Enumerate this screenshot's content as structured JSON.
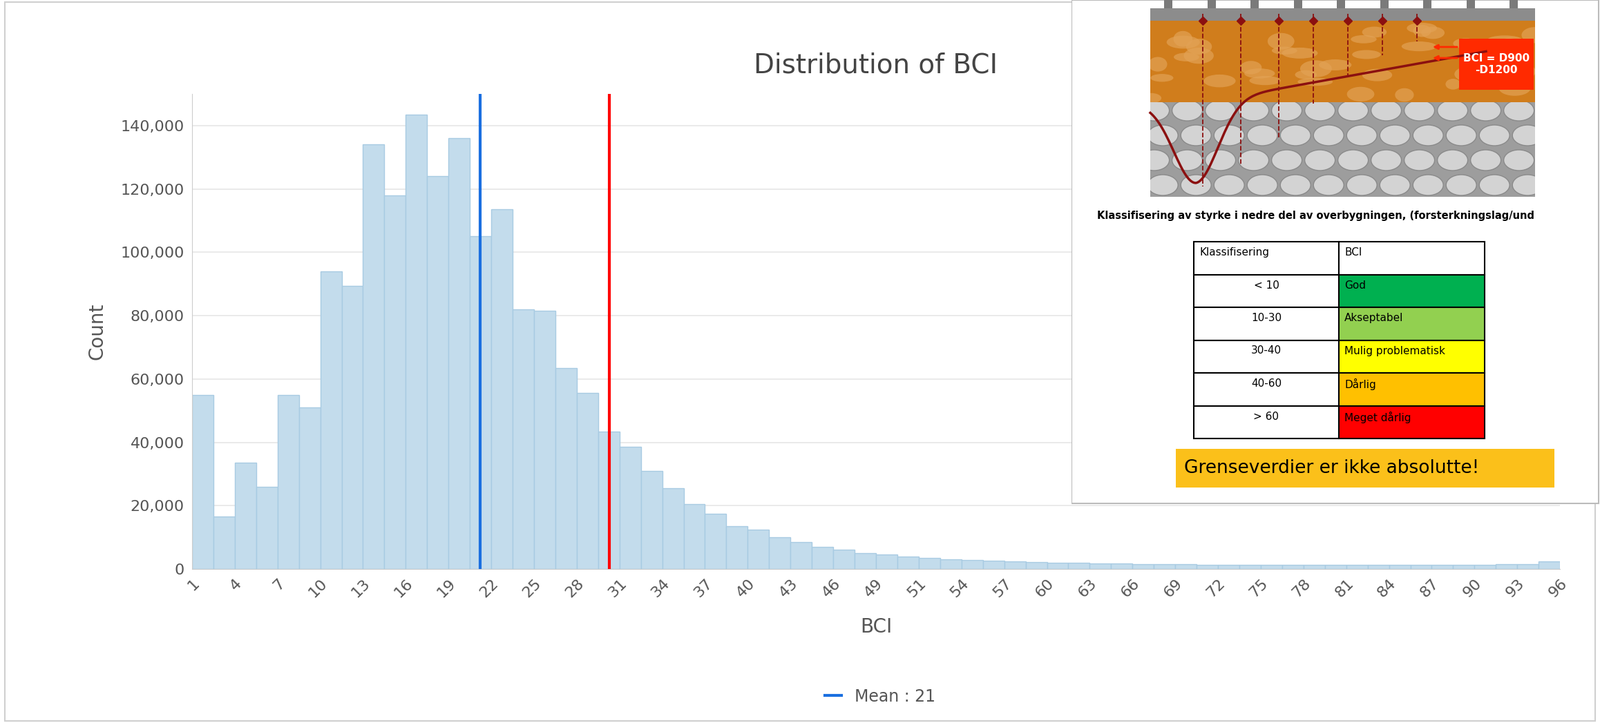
{
  "chart_data": {
    "type": "histogram",
    "title": "Distribution of BCI",
    "x_label": "BCI",
    "y_label": "Count",
    "bins": [
      1,
      2.484375,
      3.96875,
      5.453125,
      6.9375,
      8.421875,
      9.90625,
      11.390625,
      12.875,
      14.359375,
      15.84375,
      17.328125,
      18.8125,
      20.296875,
      21.78125,
      23.265625,
      24.75,
      26.234375,
      27.71875,
      29.203125,
      30.6875,
      32.171875,
      33.65625,
      35.140625,
      36.625,
      38.109375,
      39.59375,
      41.078125,
      42.5625,
      44.046875,
      45.53125,
      47.015625,
      48.5,
      49.984375,
      51.46875,
      52.953125,
      54.4375,
      55.921875,
      57.40625,
      58.890625,
      60.375,
      61.859375,
      63.34375,
      64.828125,
      66.3125,
      67.796875,
      69.28125,
      70.765625,
      72.25,
      73.734375,
      75.21875,
      76.703125,
      78.1875,
      79.671875,
      81.15625,
      82.640625,
      84.125,
      85.609375,
      87.09375,
      88.578125,
      90.0625,
      91.546875,
      93.03125,
      94.515625,
      96
    ],
    "values": [
      55000,
      16500,
      33500,
      26000,
      55000,
      51000,
      94000,
      89500,
      134000,
      118000,
      143500,
      124000,
      136000,
      105000,
      113500,
      82000,
      81500,
      63500,
      55500,
      43500,
      38500,
      31000,
      25500,
      20500,
      17500,
      13500,
      12500,
      10000,
      8500,
      7000,
      6000,
      5000,
      4500,
      4000,
      3500,
      3000,
      2800,
      2600,
      2400,
      2200,
      2000,
      1900,
      1800,
      1700,
      1600,
      1500,
      1500,
      1400,
      1400,
      1300,
      1300,
      1300,
      1200,
      1200,
      1200,
      1300,
      1300,
      1300,
      1300,
      1400,
      1400,
      1500,
      1600,
      2500
    ],
    "color": "#c3dcec",
    "xlim": [
      1,
      96
    ],
    "xticks": [
      1,
      {
        "value": 3.96875,
        "label": "4"
      },
      {
        "value": 6.9375,
        "label": "7"
      },
      {
        "value": 9.90625,
        "label": "10"
      },
      {
        "value": 12.875,
        "label": "13"
      },
      {
        "value": 15.84375,
        "label": "16"
      },
      {
        "value": 18.8125,
        "label": "19"
      },
      {
        "value": 21.78125,
        "label": "22"
      },
      {
        "value": 24.75,
        "label": "25"
      },
      {
        "value": 27.71875,
        "label": "28"
      },
      {
        "value": 30.6875,
        "label": "31"
      },
      {
        "value": 33.65625,
        "label": "34"
      },
      {
        "value": 36.625,
        "label": "37"
      },
      {
        "value": 39.59375,
        "label": "40"
      },
      {
        "value": 42.5625,
        "label": "43"
      },
      {
        "value": 45.53125,
        "label": "46"
      },
      {
        "value": 48.5,
        "label": "49"
      },
      {
        "value": 51.46875,
        "label": "51"
      },
      {
        "value": 54.4375,
        "label": "54"
      },
      {
        "value": 57.40625,
        "label": "57"
      },
      {
        "value": 60.375,
        "label": "60"
      },
      {
        "value": 63.34375,
        "label": "63"
      },
      {
        "value": 66.3125,
        "label": "66"
      },
      {
        "value": 69.28125,
        "label": "69"
      },
      {
        "value": 72.25,
        "label": "72"
      },
      {
        "value": 75.21875,
        "label": "75"
      },
      {
        "value": 78.1875,
        "label": "78"
      },
      {
        "value": 81.15625,
        "label": "81"
      },
      {
        "value": 84.125,
        "label": "84"
      },
      {
        "value": 87.09375,
        "label": "87"
      },
      {
        "value": 90.0625,
        "label": "90"
      },
      {
        "value": 93.03125,
        "label": "93"
      },
      96
    ],
    "ylim": [
      0,
      150000
    ],
    "yticks": [
      0,
      {
        "value": 20000,
        "label": "20,000"
      },
      {
        "value": 40000,
        "label": "40,000"
      },
      {
        "value": 60000,
        "label": "60,000"
      },
      {
        "value": 80000,
        "label": "80,000"
      },
      {
        "value": 100000,
        "label": "100,000"
      },
      {
        "value": 120000,
        "label": "120,000"
      },
      {
        "value": 140000,
        "label": "140,000"
      }
    ],
    "grid": true,
    "legend": "lower center",
    "vertical_lines": [
      {
        "value": 21,
        "color": "#1a6fe0",
        "name": "Mean : 21"
      },
      {
        "value": 30,
        "color": "#ff0000"
      }
    ]
  },
  "inset": {
    "diagram_label": "BCI = D900\n-D1200",
    "caption": "Klassifisering av styrke i nedre del av overbygningen, (forsterkningslag/und",
    "table": {
      "header": [
        "Klassifisering",
        "BCI"
      ],
      "rows": [
        [
          "< 10",
          "God"
        ],
        [
          "10-30",
          "Akseptabel"
        ],
        [
          "30-40",
          "Mulig problematisk"
        ],
        [
          "40-60",
          "Dårlig"
        ],
        [
          "> 60",
          "Meget dårlig"
        ]
      ]
    },
    "note": "Grenseverdier er ikke absolutte!"
  }
}
